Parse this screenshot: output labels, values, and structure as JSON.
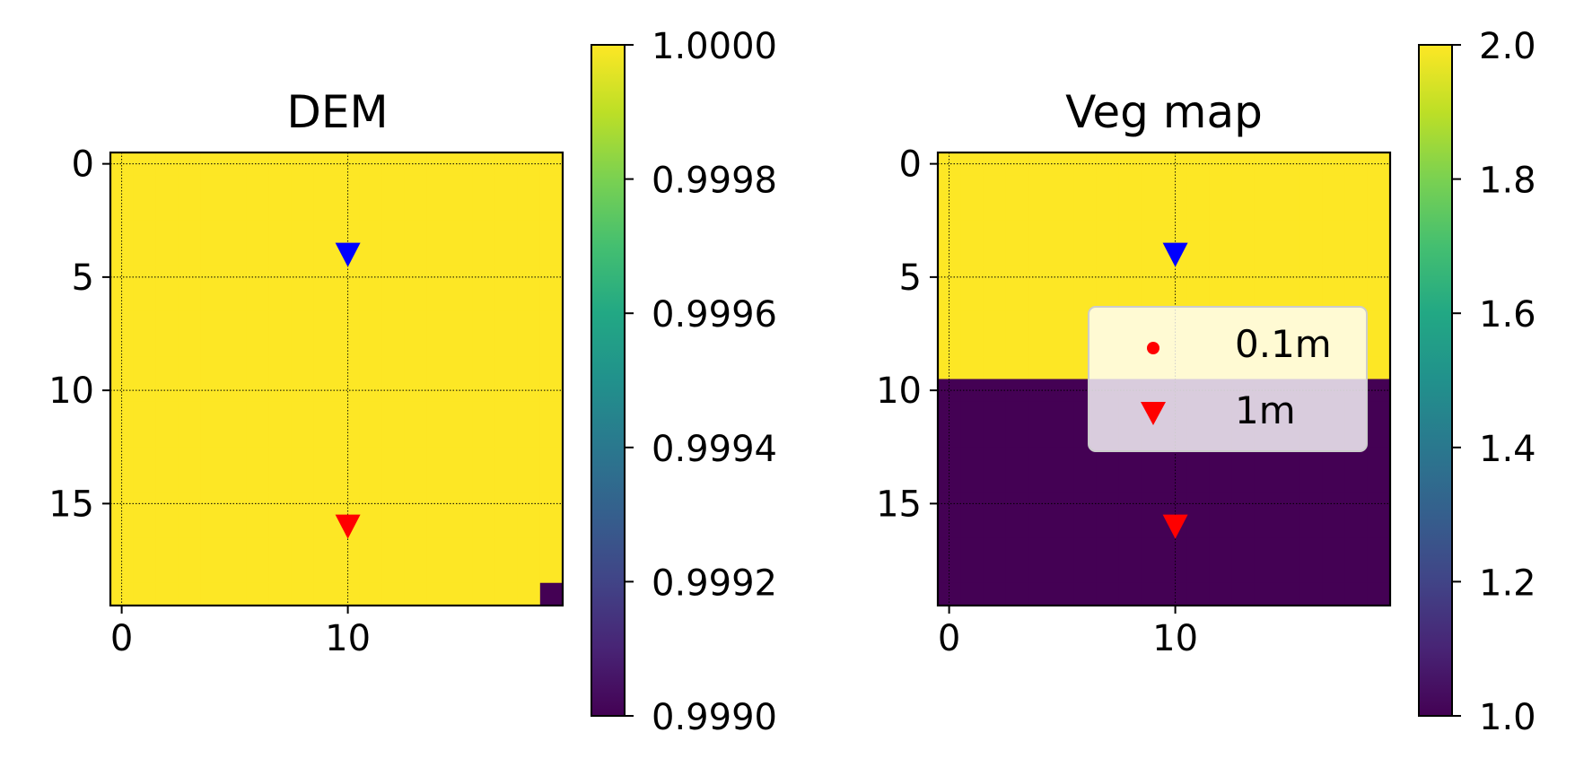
{
  "colormap_name": "viridis",
  "chart_data": [
    {
      "type": "heatmap",
      "title": "DEM",
      "grid_size": [
        20,
        20
      ],
      "base_value": 1.0,
      "cell_overrides": [
        {
          "row": 19,
          "col": 19,
          "value": 0.999
        }
      ],
      "xticks": [
        "0",
        "10"
      ],
      "xtick_values": [
        0,
        10
      ],
      "yticks": [
        "0",
        "5",
        "10",
        "15"
      ],
      "ytick_values": [
        0,
        5,
        10,
        15
      ],
      "grid": true,
      "markers": [
        {
          "series": "blue",
          "x": 10,
          "y": 4,
          "shape": "triangle-down",
          "color": "#0000ff"
        },
        {
          "series": "1m",
          "x": 10,
          "y": 16,
          "shape": "triangle-down",
          "color": "#ff0000"
        }
      ],
      "colorbar": {
        "range": [
          0.999,
          1.0
        ],
        "ticks": [
          "0.9990",
          "0.9992",
          "0.9994",
          "0.9996",
          "0.9998",
          "1.0000"
        ],
        "tick_values": [
          0.999,
          0.9992,
          0.9994,
          0.9996,
          0.9998,
          1.0
        ]
      }
    },
    {
      "type": "heatmap",
      "title": "Veg map",
      "grid_size": [
        20,
        20
      ],
      "row_values": [
        2,
        2,
        2,
        2,
        2,
        2,
        2,
        2,
        2,
        2,
        1,
        1,
        1,
        1,
        1,
        1,
        1,
        1,
        1,
        1
      ],
      "xticks": [
        "0",
        "10"
      ],
      "xtick_values": [
        0,
        10
      ],
      "yticks": [
        "0",
        "5",
        "10",
        "15"
      ],
      "ytick_values": [
        0,
        5,
        10,
        15
      ],
      "grid": true,
      "markers": [
        {
          "series": "blue",
          "x": 10,
          "y": 4,
          "shape": "triangle-down",
          "color": "#0000ff"
        },
        {
          "series": "1m",
          "x": 10,
          "y": 16,
          "shape": "triangle-down",
          "color": "#ff0000"
        }
      ],
      "legend": {
        "placement": "center-right",
        "entries": [
          {
            "label": "0.1m",
            "marker": "dot",
            "color": "#ff0000"
          },
          {
            "label": "1m",
            "marker": "triangle-down",
            "color": "#ff0000"
          }
        ]
      },
      "colorbar": {
        "range": [
          1.0,
          2.0
        ],
        "ticks": [
          "1.0",
          "1.2",
          "1.4",
          "1.6",
          "1.8",
          "2.0"
        ],
        "tick_values": [
          1.0,
          1.2,
          1.4,
          1.6,
          1.8,
          2.0
        ]
      }
    }
  ]
}
